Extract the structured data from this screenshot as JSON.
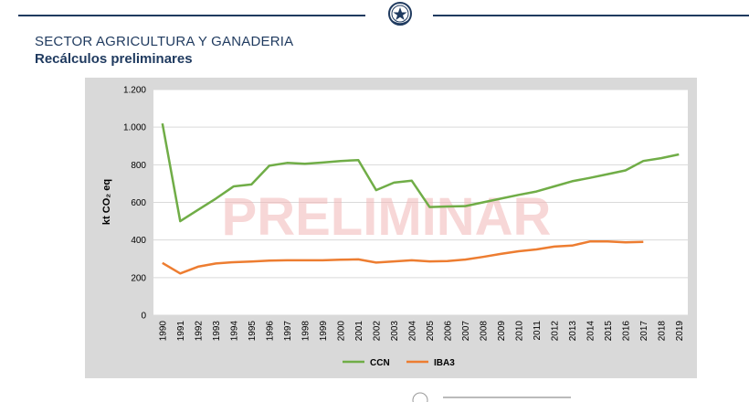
{
  "header": {
    "sector": "SECTOR AGRICULTURA Y GANADERIA",
    "subtitle": "Recálculos preliminares"
  },
  "watermark": "PRELIMINAR",
  "chart_data": {
    "type": "line",
    "ylabel": "kt CO₂ eq",
    "ylim": [
      0,
      1200
    ],
    "yticks": [
      0,
      200,
      400,
      600,
      800,
      1000,
      1200
    ],
    "ytick_labels": [
      "0",
      "200",
      "400",
      "600",
      "800",
      "1.000",
      "1.200"
    ],
    "categories": [
      "1990",
      "1991",
      "1992",
      "1993",
      "1994",
      "1995",
      "1996",
      "1997",
      "1998",
      "1999",
      "2000",
      "2001",
      "2002",
      "2003",
      "2004",
      "2005",
      "2006",
      "2007",
      "2008",
      "2009",
      "2010",
      "2011",
      "2012",
      "2013",
      "2014",
      "2015",
      "2016",
      "2017",
      "2018",
      "2019"
    ],
    "grid": true,
    "legend_position": "bottom",
    "series": [
      {
        "name": "CCN",
        "color": "#70ad47",
        "values": [
          1020,
          500,
          560,
          620,
          685,
          695,
          795,
          810,
          805,
          812,
          820,
          825,
          665,
          705,
          715,
          575,
          578,
          580,
          600,
          620,
          640,
          658,
          685,
          712,
          730,
          750,
          770,
          820,
          835,
          855
        ]
      },
      {
        "name": "IBA3",
        "color": "#ed7d31",
        "values": [
          278,
          222,
          258,
          275,
          282,
          285,
          290,
          292,
          292,
          292,
          295,
          297,
          280,
          286,
          292,
          286,
          288,
          296,
          310,
          326,
          340,
          350,
          365,
          370,
          392,
          392,
          387,
          390,
          null,
          null
        ]
      }
    ]
  }
}
